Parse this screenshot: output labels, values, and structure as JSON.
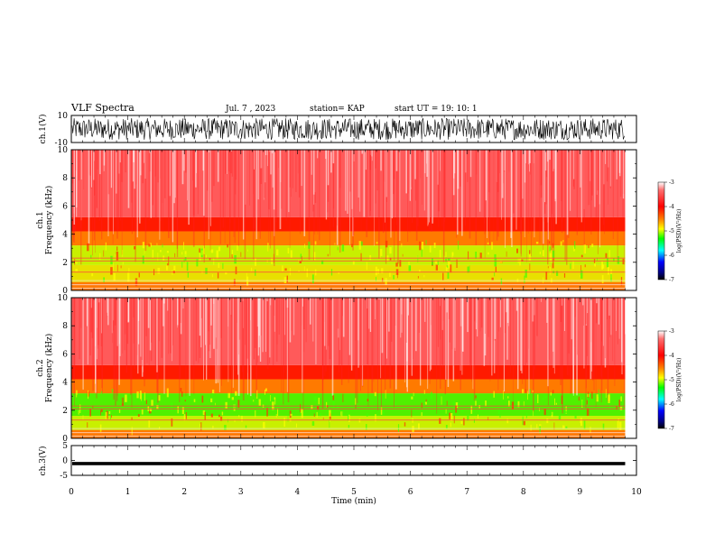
{
  "header": {
    "title": "VLF Spectra",
    "date": "Jul. 7 , 2023",
    "station": "station= KAP",
    "start": "start UT = 19: 10: 1"
  },
  "chart_data": [
    {
      "type": "line",
      "panel": "ch1-waveform",
      "ylabel": "ch.1(V)",
      "ylim": [
        -10,
        10
      ],
      "yticks": [
        "10",
        "-10"
      ],
      "xlim": [
        0,
        10
      ],
      "note_values": "dense broadband noise waveform, approx -8 to 8 V"
    },
    {
      "type": "heatmap",
      "panel": "ch1-spectrogram",
      "ylabel": "ch.1\nFrequency (kHz)",
      "ylabel_line1": "ch.1",
      "ylabel_line2": "Frequency (kHz)",
      "ylim": [
        0,
        10
      ],
      "yticks": [
        "0",
        "2",
        "4",
        "6",
        "8",
        "10"
      ],
      "xlim": [
        0,
        10
      ],
      "colorbar": {
        "label": "log(PSD)(V²/Hz)",
        "range": [
          -7,
          -3
        ],
        "ticks": [
          "-3",
          "-4",
          "-5",
          "-6",
          "-7"
        ]
      },
      "bands": [
        {
          "from_khz": 0,
          "to_khz": 0.6,
          "level": -4.4
        },
        {
          "from_khz": 0.6,
          "to_khz": 1.8,
          "level": -4.6
        },
        {
          "from_khz": 1.8,
          "to_khz": 3.2,
          "level": -5.0
        },
        {
          "from_khz": 3.2,
          "to_khz": 4.2,
          "level": -4.4
        },
        {
          "from_khz": 4.2,
          "to_khz": 5.2,
          "level": -3.9
        },
        {
          "from_khz": 5.2,
          "to_khz": 10,
          "level": -3.3
        }
      ]
    },
    {
      "type": "heatmap",
      "panel": "ch2-spectrogram",
      "ylabel": "ch.2\nFrequency (kHz)",
      "ylabel_line1": "ch.2",
      "ylabel_line2": "Frequency (kHz)",
      "ylim": [
        0,
        10
      ],
      "yticks": [
        "0",
        "2",
        "4",
        "6",
        "8",
        "10"
      ],
      "xlim": [
        0,
        10
      ],
      "colorbar": {
        "label": "log(PSD)(V²/Hz)",
        "range": [
          -7,
          -3
        ],
        "ticks": [
          "-3",
          "-4",
          "-5",
          "-6",
          "-7"
        ]
      },
      "bands": [
        {
          "from_khz": 0,
          "to_khz": 0.6,
          "level": -4.4
        },
        {
          "from_khz": 0.6,
          "to_khz": 1.6,
          "level": -4.9
        },
        {
          "from_khz": 1.6,
          "to_khz": 3.2,
          "level": -5.2
        },
        {
          "from_khz": 3.2,
          "to_khz": 4.2,
          "level": -4.3
        },
        {
          "from_khz": 4.2,
          "to_khz": 5.2,
          "level": -3.9
        },
        {
          "from_khz": 5.2,
          "to_khz": 10,
          "level": -3.3
        }
      ]
    },
    {
      "type": "line",
      "panel": "ch3-waveform",
      "ylabel": "ch.3(V)",
      "ylim": [
        -5,
        5
      ],
      "yticks": [
        "5",
        "0",
        "-5"
      ],
      "xlim": [
        0,
        10
      ],
      "note_values": "flat band approx -1.5 to -0.5 V"
    }
  ],
  "xaxis": {
    "label": "Time (min)",
    "ticks": [
      "0",
      "1",
      "2",
      "3",
      "4",
      "5",
      "6",
      "7",
      "8",
      "9",
      "10"
    ],
    "range": [
      0,
      10
    ],
    "data_end": 9.8
  },
  "colors": {
    "background": "#ffffff",
    "axes": "#000000",
    "cmap": [
      "#ffffff",
      "#ff0000",
      "#ffff00",
      "#00ff00",
      "#00ffff",
      "#0000ff",
      "#000000"
    ]
  }
}
